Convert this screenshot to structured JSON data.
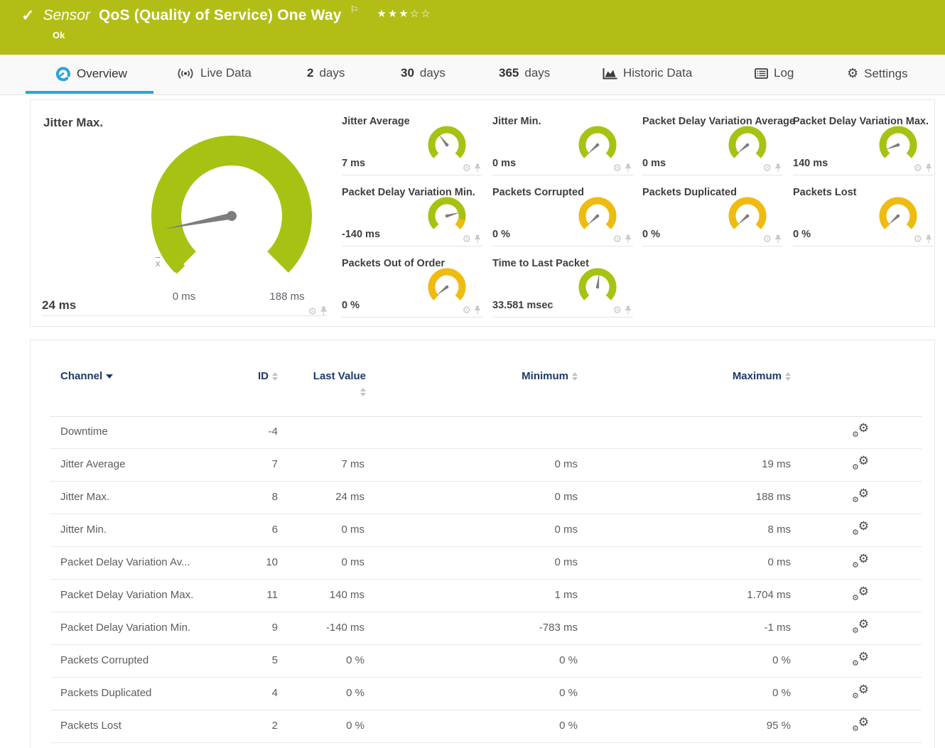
{
  "colors": {
    "banner": "#b2be16",
    "green": "#a8c213",
    "orange": "#eebb10",
    "blue": "#2ba3dc",
    "navy": "#1f3a68",
    "needle": "#7d7d7d"
  },
  "header": {
    "kind": "Sensor",
    "title": "QoS (Quality of Service) One Way",
    "status": "Ok",
    "stars_filled": 3,
    "stars_total": 5
  },
  "tabs": [
    {
      "label": "Overview",
      "icon": "gauge-icon",
      "active": true
    },
    {
      "label": "Live Data",
      "icon": "live-icon"
    },
    {
      "bold": "2",
      "label": "days"
    },
    {
      "bold": "30",
      "label": "days"
    },
    {
      "bold": "365",
      "label": "days"
    },
    {
      "label": "Historic Data",
      "icon": "area-chart-icon"
    },
    {
      "label": "Log",
      "icon": "log-icon"
    },
    {
      "label": "Settings",
      "icon": "gear-icon"
    }
  ],
  "main_gauge": {
    "title": "Jitter Max.",
    "value": "24 ms",
    "scale_min": "0 ms",
    "scale_max": "188 ms",
    "mean_symbol": "x",
    "needle_deg": 259
  },
  "small_gauges": [
    {
      "title": "Jitter Average",
      "value": "7 ms",
      "color": "green",
      "needle_deg": 322
    },
    {
      "title": "Jitter Min.",
      "value": "0 ms",
      "color": "green",
      "needle_deg": 227
    },
    {
      "title": "Packet Delay Variation Average",
      "value": "0 ms",
      "color": "green",
      "needle_deg": 230
    },
    {
      "title": "Packet Delay Variation Max.",
      "value": "140 ms",
      "color": "green",
      "needle_deg": 250
    },
    {
      "title": "Packet Delay Variation Min.",
      "value": "-140 ms",
      "color": "green",
      "needle_deg": 75,
      "warn_end": true
    },
    {
      "title": "Packets Corrupted",
      "value": "0 %",
      "color": "orange",
      "needle_deg": 228
    },
    {
      "title": "Packets Duplicated",
      "value": "0 %",
      "color": "orange",
      "needle_deg": 228
    },
    {
      "title": "Packets Lost",
      "value": "0 %",
      "color": "orange",
      "needle_deg": 228
    },
    {
      "title": "Packets Out of Order",
      "value": "0 %",
      "color": "orange",
      "needle_deg": 231
    },
    {
      "title": "Time to Last Packet",
      "value": "33.581 msec",
      "color": "green",
      "needle_deg": 7
    }
  ],
  "table": {
    "columns": [
      "Channel",
      "ID",
      "Last Value",
      "Minimum",
      "Maximum"
    ],
    "rows": [
      {
        "channel": "Downtime",
        "id": "-4",
        "last": "",
        "min": "",
        "max": ""
      },
      {
        "channel": "Jitter Average",
        "id": "7",
        "last": "7 ms",
        "min": "0 ms",
        "max": "19 ms"
      },
      {
        "channel": "Jitter Max.",
        "id": "8",
        "last": "24 ms",
        "min": "0 ms",
        "max": "188 ms"
      },
      {
        "channel": "Jitter Min.",
        "id": "6",
        "last": "0 ms",
        "min": "0 ms",
        "max": "8 ms"
      },
      {
        "channel": "Packet Delay Variation Av...",
        "id": "10",
        "last": "0 ms",
        "min": "0 ms",
        "max": "0 ms"
      },
      {
        "channel": "Packet Delay Variation Max.",
        "id": "11",
        "last": "140 ms",
        "min": "1 ms",
        "max": "1.704 ms"
      },
      {
        "channel": "Packet Delay Variation Min.",
        "id": "9",
        "last": "-140 ms",
        "min": "-783 ms",
        "max": "-1 ms"
      },
      {
        "channel": "Packets Corrupted",
        "id": "5",
        "last": "0 %",
        "min": "0 %",
        "max": "0 %"
      },
      {
        "channel": "Packets Duplicated",
        "id": "4",
        "last": "0 %",
        "min": "0 %",
        "max": "0 %"
      },
      {
        "channel": "Packets Lost",
        "id": "2",
        "last": "0 %",
        "min": "0 %",
        "max": "95 %"
      }
    ]
  }
}
